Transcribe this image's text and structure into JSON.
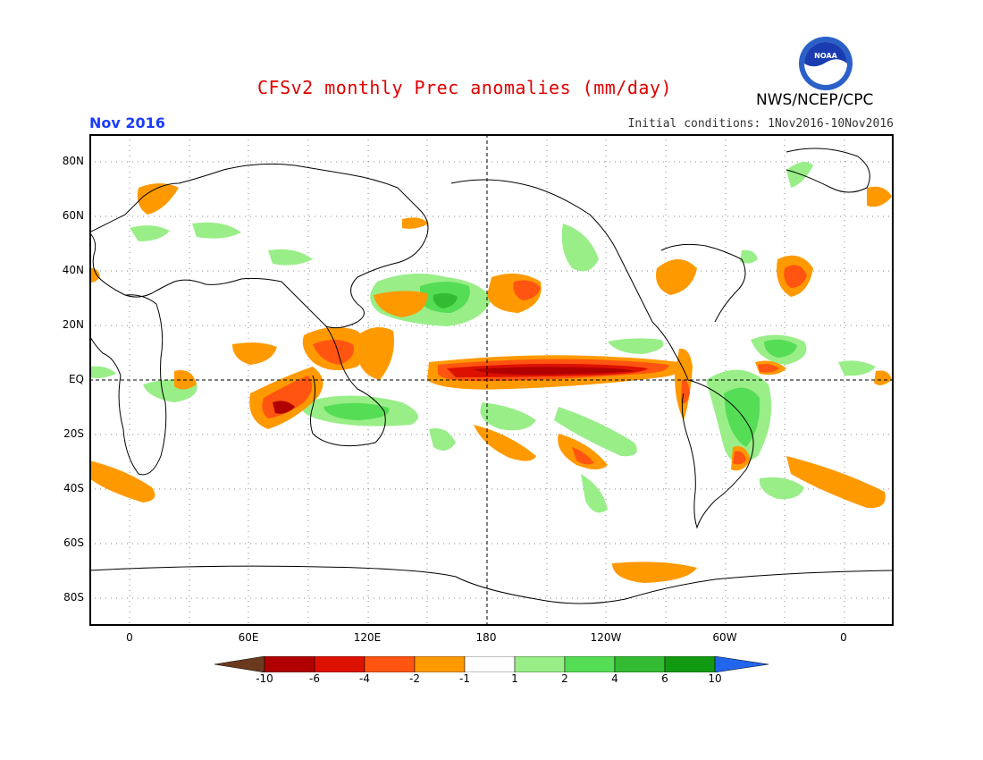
{
  "title": "CFSv2 monthly Prec anomalies (mm/day)",
  "agency": "NWS/NCEP/CPC",
  "logo_text": "NOAA",
  "month_label": "Nov 2016",
  "initial_conditions": "Initial conditions: 1Nov2016-10Nov2016",
  "lat_labels": [
    "80N",
    "60N",
    "40N",
    "20N",
    "EQ",
    "20S",
    "40S",
    "60S",
    "80S"
  ],
  "lon_labels": [
    "0",
    "60E",
    "120E",
    "180",
    "120W",
    "60W",
    "0"
  ],
  "colorbar": {
    "labels": [
      "-10",
      "-6",
      "-4",
      "-2",
      "-1",
      "1",
      "2",
      "4",
      "6",
      "10"
    ],
    "colors": [
      "#6b3a1e",
      "#b00000",
      "#dd1100",
      "#ff5511",
      "#ff9900",
      "#ffffff",
      "#99ee88",
      "#55dd55",
      "#33bb33",
      "#119911",
      "#2266ee"
    ]
  },
  "colors": {
    "dry_light": "#ff9900",
    "dry_mid": "#ff5511",
    "dry_strong": "#dd1100",
    "dry_extreme": "#b00000",
    "wet_light": "#99ee88",
    "wet_mid": "#55dd55",
    "wet_strong": "#33bb33",
    "title": "#e00000",
    "month": "#1a3cff"
  }
}
